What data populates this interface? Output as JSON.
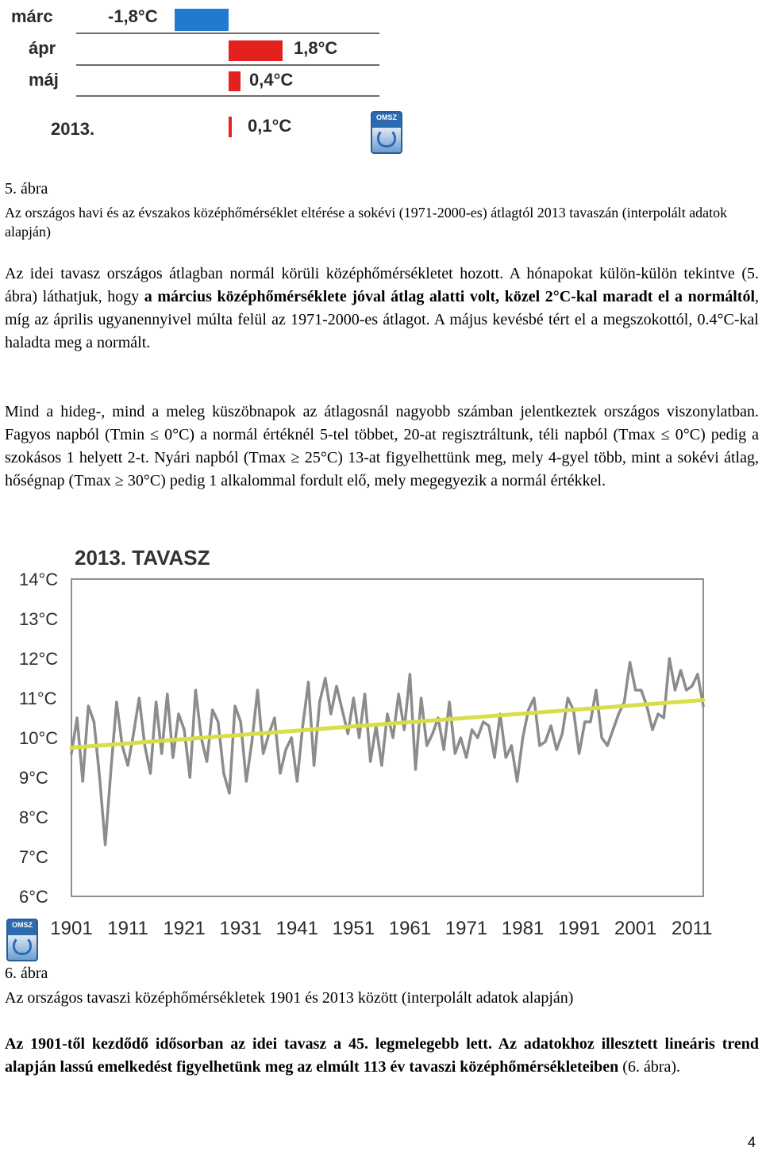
{
  "figure5": {
    "rows": [
      {
        "label": "márc",
        "value_label": "-1,8°C",
        "value": -1.8,
        "color": "#1f7ad0"
      },
      {
        "label": "ápr",
        "value_label": "1,8°C",
        "value": 1.8,
        "color": "#e4211f"
      },
      {
        "label": "máj",
        "value_label": "0,4°C",
        "value": 0.4,
        "color": "#e4211f"
      },
      {
        "label": "2013.",
        "value_label": "0,1°C",
        "value": 0.1,
        "color": "#e4211f"
      }
    ],
    "logo_text": "OMSZ"
  },
  "caption5": {
    "number": "5. ábra",
    "text": "Az országos havi és az évszakos középhőmérséklet eltérése a sokévi (1971-2000-es) átlagtól 2013 tavaszán (interpolált adatok alapján)"
  },
  "para1": {
    "s1": "Az idei tavasz országos átlagban normál körüli középhőmérsékletet hozott. A hónapokat külön-külön tekintve (5. ábra) láthatjuk, hogy ",
    "b1": "a március középhőmérséklete jóval átlag alatti volt, közel 2°C-kal maradt el a normáltól",
    "s2": ", míg az április ugyanennyivel múlta felül az 1971-2000-es átlagot. A május kevésbé tért el a megszokottól, 0.4°C-kal haladta meg a normált."
  },
  "para2": {
    "text": "Mind a hideg-, mind a meleg küszöbnapok az átlagosnál nagyobb számban jelentkeztek országos viszonylatban. Fagyos napból (Tmin ≤ 0°C) a normál értéknél 5-tel többet, 20-at regisztráltunk, téli napból (Tmax ≤ 0°C) pedig a szokásos 1 helyett 2-t. Nyári napból (Tmax ≥ 25°C) 13-at figyelhettünk meg, mely 4-gyel több, mint a sokévi átlag, hőségnap (Tmax ≥ 30°C) pedig 1 alkalommal fordult elő, mely megegyezik a normál értékkel."
  },
  "chart_data": {
    "type": "line",
    "title": "2013. TAVASZ",
    "y_ticks": [
      "14°C",
      "13°C",
      "12°C",
      "11°C",
      "10°C",
      "9°C",
      "8°C",
      "7°C",
      "6°C"
    ],
    "x_ticks": [
      "1901",
      "1911",
      "1921",
      "1931",
      "1941",
      "1951",
      "1961",
      "1971",
      "1981",
      "1991",
      "2001",
      "2011"
    ],
    "xlim": [
      1901,
      2013
    ],
    "ylim": [
      6,
      14
    ],
    "grid": false,
    "series": [
      {
        "color": "#8c8c8c",
        "x": [
          1901,
          1902,
          1903,
          1904,
          1905,
          1906,
          1907,
          1908,
          1909,
          1910,
          1911,
          1912,
          1913,
          1914,
          1915,
          1916,
          1917,
          1918,
          1919,
          1920,
          1921,
          1922,
          1923,
          1924,
          1925,
          1926,
          1927,
          1928,
          1929,
          1930,
          1931,
          1932,
          1933,
          1934,
          1935,
          1936,
          1937,
          1938,
          1939,
          1940,
          1941,
          1942,
          1943,
          1944,
          1945,
          1946,
          1947,
          1948,
          1949,
          1950,
          1951,
          1952,
          1953,
          1954,
          1955,
          1956,
          1957,
          1958,
          1959,
          1960,
          1961,
          1962,
          1963,
          1964,
          1965,
          1966,
          1967,
          1968,
          1969,
          1970,
          1971,
          1972,
          1973,
          1974,
          1975,
          1976,
          1977,
          1978,
          1979,
          1980,
          1981,
          1982,
          1983,
          1984,
          1985,
          1986,
          1987,
          1988,
          1989,
          1990,
          1991,
          1992,
          1993,
          1994,
          1995,
          1996,
          1997,
          1998,
          1999,
          2000,
          2001,
          2002,
          2003,
          2004,
          2005,
          2006,
          2007,
          2008,
          2009,
          2010,
          2011,
          2012,
          2013
        ],
        "values": [
          9.6,
          10.5,
          8.9,
          10.8,
          10.4,
          9.0,
          7.3,
          9.2,
          10.9,
          9.8,
          9.3,
          10.1,
          11.0,
          9.8,
          9.1,
          10.9,
          9.6,
          11.1,
          9.5,
          10.6,
          10.2,
          9.0,
          11.2,
          10.0,
          9.4,
          10.7,
          10.4,
          9.1,
          8.6,
          10.8,
          10.4,
          8.9,
          9.9,
          11.2,
          9.6,
          10.1,
          10.5,
          9.1,
          9.7,
          10.0,
          8.9,
          10.3,
          11.4,
          9.3,
          10.9,
          11.5,
          10.6,
          11.3,
          10.7,
          10.1,
          11.0,
          10.0,
          11.1,
          9.4,
          10.3,
          9.3,
          10.6,
          10.0,
          11.1,
          10.2,
          11.6,
          9.2,
          11.0,
          9.8,
          10.1,
          10.5,
          9.7,
          10.9,
          9.6,
          10.0,
          9.5,
          10.2,
          10.0,
          10.4,
          10.3,
          9.5,
          10.6,
          9.5,
          9.8,
          8.9,
          10.0,
          10.7,
          11.0,
          9.8,
          9.9,
          10.3,
          9.7,
          10.1,
          11.0,
          10.7,
          9.6,
          10.4,
          10.4,
          11.2,
          10.0,
          9.8,
          10.2,
          10.6,
          10.9,
          11.9,
          11.2,
          11.2,
          10.8,
          10.2,
          10.6,
          10.5,
          12.0,
          11.2,
          11.7,
          11.2,
          11.3,
          11.6,
          10.8
        ]
      },
      {
        "color": "#d8de4a",
        "x": [
          1901,
          2013
        ],
        "values": [
          9.75,
          10.95
        ]
      }
    ]
  },
  "caption6": {
    "number": "6. ábra",
    "text": "Az országos tavaszi középhőmérsékletek 1901 és 2013 között (interpolált adatok alapján)"
  },
  "para3": {
    "b1": "Az 1901-től kezdődő idősorban az idei tavasz a 45. legmelegebb lett. Az adatokhoz illesztett lineáris trend alapján lassú emelkedést figyelhetünk meg az elmúlt 113 év tavaszi középhőmérsékleteiben",
    "s1": " (6. ábra)."
  },
  "page_number": "4"
}
